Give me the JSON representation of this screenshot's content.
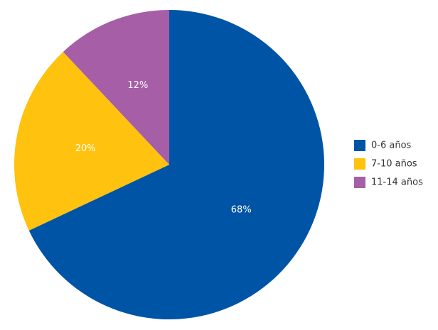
{
  "chart_data": {
    "type": "pie",
    "categories": [
      "0-6 años",
      "7-10 años",
      "11-14 años"
    ],
    "values": [
      68,
      20,
      12
    ],
    "value_labels": [
      "68%",
      "20%",
      "12%"
    ],
    "colors": [
      "#0054a6",
      "#ffc20e",
      "#a65ea6"
    ],
    "legend": "right"
  }
}
